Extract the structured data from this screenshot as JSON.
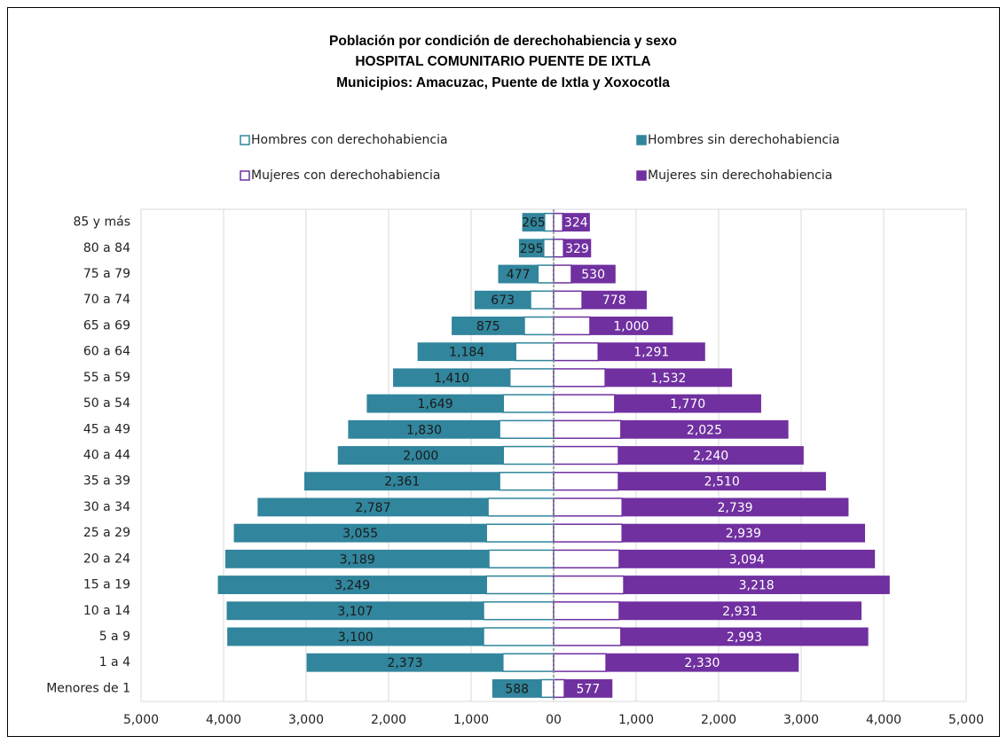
{
  "chart_data": {
    "type": "pyramid",
    "title": [
      "Población por condición de derechohabiencia y sexo",
      "HOSPITAL COMUNITARIO PUENTE DE IXTLA",
      "Municipios: Amacuzac, Puente de Ixtla y Xoxocotla"
    ],
    "categories": [
      "85 y más",
      "80 a 84",
      "75 a 79",
      "70 a 74",
      "65 a 69",
      "60 a 64",
      "55 a 59",
      "50 a 54",
      "45 a 49",
      "40 a 44",
      "35 a 39",
      "30 a 34",
      "25 a 29",
      "20 a 24",
      "15 a 19",
      "10 a 14",
      "5 a 9",
      "1 a 4",
      "Menores de 1"
    ],
    "series": [
      {
        "name": "Hombres con derechohabiencia",
        "color": "#31859c",
        "fill": "#ffffff",
        "values": [
          110,
          120,
          190,
          280,
          355,
          460,
          530,
          610,
          655,
          610,
          655,
          795,
          815,
          785,
          815,
          850,
          850,
          615,
          150
        ]
      },
      {
        "name": "Hombres sin derechohabiencia",
        "color": "#31859c",
        "fill": "#31859c",
        "values": [
          265,
          295,
          477,
          673,
          875,
          1184,
          1410,
          1649,
          1830,
          2000,
          2361,
          2787,
          3055,
          3189,
          3249,
          3107,
          3100,
          2373,
          588
        ],
        "value_labels": [
          "265",
          "295",
          "477",
          "673",
          "875",
          "1,184",
          "1,410",
          "1,649",
          "1,830",
          "2,000",
          "2,361",
          "2,787",
          "3,055",
          "3,189",
          "3,249",
          "3,107",
          "3,100",
          "2,373",
          "588"
        ]
      },
      {
        "name": "Mujeres con derechohabiencia",
        "color": "#7030a0",
        "fill": "#ffffff",
        "values": [
          110,
          120,
          215,
          345,
          440,
          540,
          625,
          740,
          815,
          785,
          785,
          830,
          830,
          795,
          850,
          795,
          815,
          635,
          130
        ]
      },
      {
        "name": "Mujeres sin derechohabiencia",
        "color": "#7030a0",
        "fill": "#7030a0",
        "values": [
          324,
          329,
          530,
          778,
          1000,
          1291,
          1532,
          1770,
          2025,
          2240,
          2510,
          2739,
          2939,
          3094,
          3218,
          2931,
          2993,
          2330,
          577
        ],
        "value_labels": [
          "324",
          "329",
          "530",
          "778",
          "1,000",
          "1,291",
          "1,532",
          "1,770",
          "2,025",
          "2,240",
          "2,510",
          "2,739",
          "2,939",
          "3,094",
          "3,218",
          "2,931",
          "2,993",
          "2,330",
          "577"
        ]
      }
    ],
    "xlim": [
      -5000,
      5000
    ],
    "xticks": [
      {
        "value": -5000,
        "label": "5,000"
      },
      {
        "value": -4000,
        "label": "4,000"
      },
      {
        "value": -3000,
        "label": "3,000"
      },
      {
        "value": -2000,
        "label": "2,000"
      },
      {
        "value": -1000,
        "label": "1,000"
      },
      {
        "value": 0,
        "label": "00"
      },
      {
        "value": 1000,
        "label": "1,000"
      },
      {
        "value": 2000,
        "label": "2,000"
      },
      {
        "value": 3000,
        "label": "3,000"
      },
      {
        "value": 4000,
        "label": "4,000"
      },
      {
        "value": 5000,
        "label": "5,000"
      }
    ],
    "grid": true
  }
}
